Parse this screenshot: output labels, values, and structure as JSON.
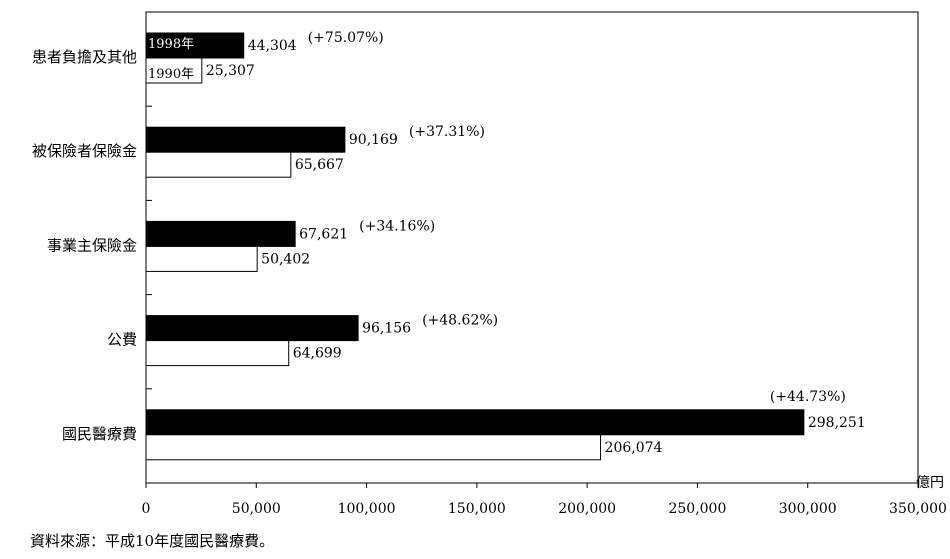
{
  "chart_data": {
    "type": "bar",
    "orientation": "horizontal",
    "categories": [
      "患者負擔及其他",
      "被保險者保險金",
      "事業主保險金",
      "公費",
      "國民醫療費"
    ],
    "series": [
      {
        "name": "1998年",
        "values": [
          44304,
          90169,
          67621,
          96156,
          298251
        ],
        "color": "#000000"
      },
      {
        "name": "1990年",
        "values": [
          25307,
          65667,
          50402,
          64699,
          206074
        ],
        "color": "#ffffff"
      }
    ],
    "value_labels": {
      "1998年": [
        "44,304",
        "90,169",
        "67,621",
        "96,156",
        "298,251"
      ],
      "1990年": [
        "25,307",
        "65,667",
        "50,402",
        "64,699",
        "206,074"
      ]
    },
    "growth_labels": [
      "(+75.07%)",
      "(+37.31%)",
      "(+34.16%)",
      "(+48.62%)",
      "(+44.73%)"
    ],
    "x_ticks": [
      "0",
      "50,000",
      "100,000",
      "150,000",
      "200,000",
      "250,000",
      "300,000",
      "350,000"
    ],
    "xlim": [
      0,
      350000
    ],
    "xlabel": "億円",
    "legend": [
      "1998年",
      "1990年"
    ],
    "legend_placement": "inside first bars"
  },
  "source": "資料來源：平成10年度國民醫療費。"
}
